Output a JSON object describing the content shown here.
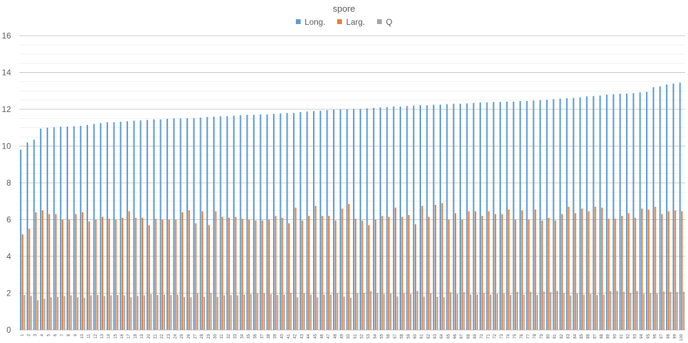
{
  "chart_data": {
    "type": "bar",
    "title": "spore",
    "xlabel": "",
    "ylabel": "",
    "ylim": [
      0,
      16
    ],
    "yticks": [
      0,
      2,
      4,
      6,
      8,
      10,
      12,
      14,
      16
    ],
    "minor_grid_step": 0.5,
    "grid": true,
    "legend_position": "top",
    "categories": [
      "1",
      "2",
      "3",
      "4",
      "5",
      "6",
      "7",
      "8",
      "9",
      "10",
      "11",
      "12",
      "13",
      "14",
      "15",
      "16",
      "17",
      "18",
      "19",
      "20",
      "21",
      "22",
      "23",
      "24",
      "25",
      "26",
      "27",
      "28",
      "29",
      "30",
      "31",
      "32",
      "33",
      "34",
      "35",
      "36",
      "37",
      "38",
      "39",
      "40",
      "41",
      "42",
      "43",
      "44",
      "45",
      "46",
      "47",
      "48",
      "49",
      "50",
      "51",
      "52",
      "53",
      "54",
      "55",
      "56",
      "57",
      "58",
      "59",
      "60",
      "61",
      "62",
      "63",
      "64",
      "65",
      "66",
      "67",
      "68",
      "69",
      "70",
      "71",
      "72",
      "73",
      "74",
      "75",
      "76",
      "77",
      "78",
      "79",
      "80",
      "81",
      "82",
      "83",
      "84",
      "85",
      "86",
      "87",
      "88",
      "89",
      "90",
      "91",
      "92",
      "93",
      "94",
      "95",
      "96",
      "97",
      "98",
      "99",
      "100"
    ],
    "series": [
      {
        "name": "Long.",
        "color": "#5B9BD5",
        "values": [
          9.8,
          10.2,
          10.35,
          10.95,
          11.0,
          11.02,
          11.05,
          11.06,
          11.08,
          11.1,
          11.15,
          11.2,
          11.25,
          11.3,
          11.3,
          11.32,
          11.35,
          11.38,
          11.4,
          11.42,
          11.45,
          11.45,
          11.48,
          11.5,
          11.5,
          11.52,
          11.52,
          11.55,
          11.58,
          11.6,
          11.62,
          11.62,
          11.65,
          11.68,
          11.7,
          11.7,
          11.72,
          11.72,
          11.75,
          11.78,
          11.8,
          11.8,
          11.85,
          11.88,
          11.9,
          11.92,
          11.95,
          11.98,
          12.0,
          12.0,
          12.02,
          12.02,
          12.05,
          12.08,
          12.1,
          12.12,
          12.15,
          12.15,
          12.18,
          12.2,
          12.22,
          12.22,
          12.25,
          12.25,
          12.28,
          12.3,
          12.3,
          12.32,
          12.35,
          12.38,
          12.38,
          12.4,
          12.4,
          12.42,
          12.42,
          12.45,
          12.45,
          12.48,
          12.5,
          12.52,
          12.55,
          12.58,
          12.6,
          12.62,
          12.65,
          12.7,
          12.72,
          12.75,
          12.8,
          12.82,
          12.85,
          12.85,
          12.88,
          12.92,
          12.95,
          13.2,
          13.25,
          13.35,
          13.4,
          13.45
        ]
      },
      {
        "name": "Larg.",
        "color": "#ED7D31",
        "values": [
          5.2,
          5.5,
          6.4,
          6.5,
          6.3,
          6.3,
          6.0,
          6.0,
          6.3,
          6.4,
          5.9,
          6.0,
          6.15,
          6.05,
          6.0,
          6.1,
          6.45,
          6.1,
          6.1,
          5.7,
          6.05,
          6.0,
          6.0,
          6.0,
          6.4,
          6.5,
          5.8,
          6.45,
          5.7,
          6.45,
          6.15,
          6.1,
          6.15,
          6.05,
          6.0,
          5.95,
          5.95,
          6.0,
          6.2,
          6.1,
          5.8,
          6.65,
          5.95,
          6.2,
          6.75,
          6.2,
          6.2,
          5.95,
          6.6,
          6.85,
          6.05,
          5.95,
          5.7,
          6.0,
          6.2,
          6.15,
          6.65,
          6.15,
          6.25,
          5.75,
          6.75,
          6.15,
          6.8,
          6.9,
          6.0,
          6.35,
          6.0,
          6.45,
          6.45,
          6.2,
          6.45,
          6.3,
          6.3,
          6.55,
          6.0,
          6.5,
          6.0,
          6.55,
          5.95,
          6.1,
          5.95,
          6.3,
          6.7,
          6.35,
          6.6,
          6.45,
          6.7,
          6.65,
          6.05,
          6.05,
          6.2,
          6.35,
          6.1,
          6.6,
          6.55,
          6.7,
          6.3,
          6.45,
          6.5,
          6.45
        ]
      },
      {
        "name": "Q",
        "color": "#A5A5A5",
        "values": [
          1.9,
          1.85,
          1.62,
          1.7,
          1.78,
          1.8,
          1.85,
          1.88,
          1.78,
          1.75,
          1.88,
          1.9,
          1.85,
          1.88,
          1.9,
          1.88,
          1.78,
          1.85,
          1.88,
          1.95,
          1.9,
          1.92,
          1.9,
          1.92,
          1.8,
          1.78,
          1.98,
          1.8,
          2.0,
          1.8,
          1.88,
          1.9,
          1.88,
          1.92,
          1.95,
          1.98,
          1.98,
          1.95,
          1.9,
          1.92,
          2.02,
          1.78,
          1.98,
          1.92,
          1.78,
          1.92,
          1.92,
          2.0,
          1.82,
          1.75,
          1.98,
          2.02,
          2.12,
          2.0,
          1.95,
          1.97,
          1.82,
          1.98,
          1.95,
          2.12,
          1.82,
          1.98,
          1.8,
          1.78,
          2.05,
          1.95,
          2.05,
          1.92,
          1.92,
          2.0,
          1.92,
          1.96,
          1.97,
          1.9,
          2.07,
          1.92,
          2.08,
          1.9,
          2.1,
          2.05,
          2.12,
          2.0,
          1.88,
          1.98,
          1.92,
          1.96,
          1.9,
          1.92,
          2.12,
          2.12,
          2.08,
          2.02,
          2.12,
          1.96,
          1.98,
          1.97,
          2.1,
          2.07,
          2.06,
          2.08
        ]
      }
    ]
  }
}
